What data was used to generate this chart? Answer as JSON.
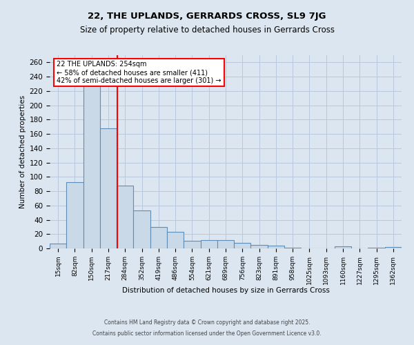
{
  "title1": "22, THE UPLANDS, GERRARDS CROSS, SL9 7JG",
  "title2": "Size of property relative to detached houses in Gerrards Cross",
  "xlabel": "Distribution of detached houses by size in Gerrards Cross",
  "ylabel": "Number of detached properties",
  "bin_labels": [
    "15sqm",
    "82sqm",
    "150sqm",
    "217sqm",
    "284sqm",
    "352sqm",
    "419sqm",
    "486sqm",
    "554sqm",
    "621sqm",
    "689sqm",
    "756sqm",
    "823sqm",
    "891sqm",
    "958sqm",
    "1025sqm",
    "1093sqm",
    "1160sqm",
    "1227sqm",
    "1295sqm",
    "1362sqm"
  ],
  "bar_values": [
    7,
    93,
    228,
    168,
    88,
    53,
    30,
    23,
    11,
    12,
    12,
    8,
    5,
    4,
    1,
    0,
    0,
    3,
    0,
    1,
    2
  ],
  "bar_color": "#c9d9e8",
  "bar_edge_color": "#5b8db8",
  "grid_color": "#b8c8dc",
  "background_color": "#dce6f0",
  "red_line_x": 3.55,
  "annotation_text": "22 THE UPLANDS: 254sqm\n← 58% of detached houses are smaller (411)\n42% of semi-detached houses are larger (301) →",
  "annotation_box_color": "white",
  "annotation_box_edge": "red",
  "footer1": "Contains HM Land Registry data © Crown copyright and database right 2025.",
  "footer2": "Contains public sector information licensed under the Open Government Licence v3.0.",
  "ylim": [
    0,
    270
  ],
  "yticks": [
    0,
    20,
    40,
    60,
    80,
    100,
    120,
    140,
    160,
    180,
    200,
    220,
    240,
    260
  ]
}
